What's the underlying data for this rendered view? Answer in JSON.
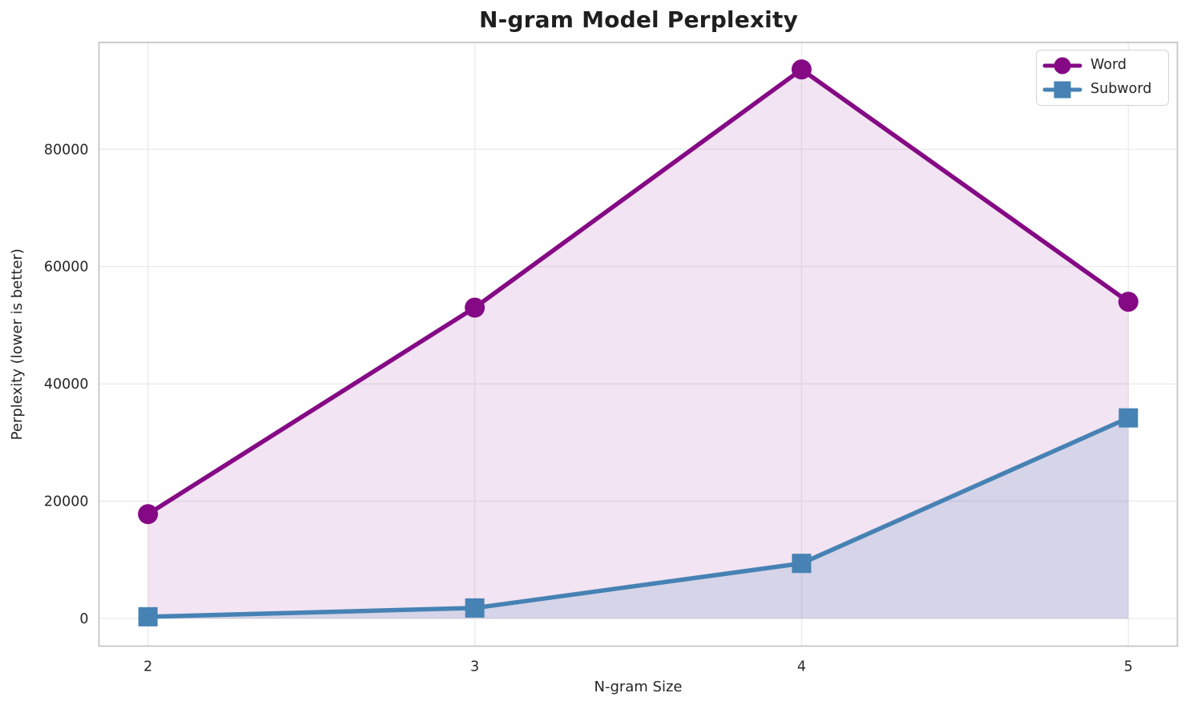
{
  "chart_data": {
    "type": "line",
    "title": "N-gram Model Perplexity",
    "xlabel": "N-gram Size",
    "ylabel": "Perplexity (lower is better)",
    "x": [
      2,
      3,
      4,
      5
    ],
    "series": [
      {
        "name": "Word",
        "marker": "circle",
        "color": "#850985",
        "fill_opacity": 0.11,
        "values": [
          17800,
          53000,
          93600,
          54000
        ]
      },
      {
        "name": "Subword",
        "marker": "square",
        "color": "#4682B4",
        "fill_opacity": 0.16,
        "values": [
          300,
          1800,
          9400,
          34200
        ]
      }
    ],
    "xticks": [
      2,
      3,
      4,
      5
    ],
    "xtick_labels": [
      "2",
      "3",
      "4",
      "5"
    ],
    "yticks": [
      0,
      20000,
      40000,
      60000,
      80000
    ],
    "ytick_labels": [
      "0",
      "20000",
      "40000",
      "60000",
      "80000"
    ],
    "xlim": [
      1.85,
      5.15
    ],
    "ylim": [
      -4700,
      98200
    ],
    "grid": true,
    "area_fill_to_zero": true,
    "legend_position": "upper right",
    "legend_entries": [
      "Word",
      "Subword"
    ]
  }
}
